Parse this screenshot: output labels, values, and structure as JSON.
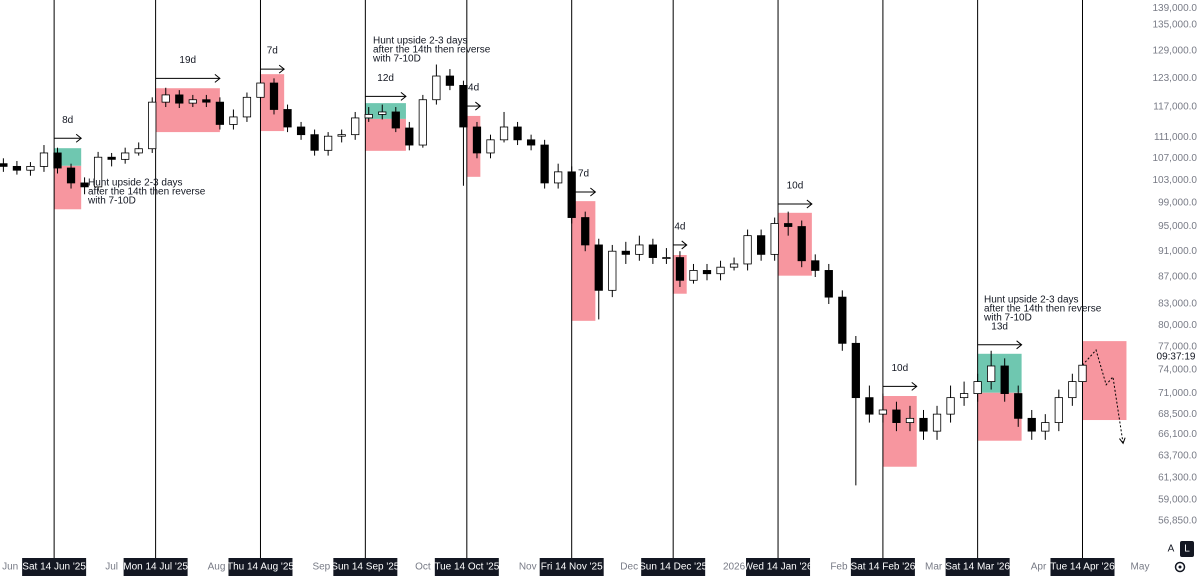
{
  "chart_data": {
    "type": "candlestick",
    "log_scale": true,
    "grid": false,
    "xlim": [
      "2025-05-29",
      "2026-05-01"
    ],
    "ylim": [
      53400,
      141000
    ],
    "yticks": [
      {
        "value": 139000,
        "label": "139,000.0"
      },
      {
        "value": 135000,
        "label": "135,000.0"
      },
      {
        "value": 129000,
        "label": "129,000.0"
      },
      {
        "value": 123000,
        "label": "123,000.0"
      },
      {
        "value": 117000,
        "label": "117,000.0"
      },
      {
        "value": 111000,
        "label": "111,000.0"
      },
      {
        "value": 107000,
        "label": "107,000.0"
      },
      {
        "value": 103000,
        "label": "103,000.0"
      },
      {
        "value": 99000,
        "label": "99,000.0"
      },
      {
        "value": 95000,
        "label": "95,000.0"
      },
      {
        "value": 91000,
        "label": "91,000.0"
      },
      {
        "value": 87000,
        "label": "87,000.0"
      },
      {
        "value": 83000,
        "label": "83,000.0"
      },
      {
        "value": 80000,
        "label": "80,000.0"
      },
      {
        "value": 77000,
        "label": "77,000.0"
      },
      {
        "value": 74000,
        "label": "74,000.0"
      },
      {
        "value": 71000,
        "label": "71,000.0"
      },
      {
        "value": 68500,
        "label": "68,500.0"
      },
      {
        "value": 66100,
        "label": "66,100.0"
      },
      {
        "value": 63700,
        "label": "63,700.0"
      },
      {
        "value": 61300,
        "label": "61,300.0"
      },
      {
        "value": 59000,
        "label": "59,000.0"
      },
      {
        "value": 56850,
        "label": "56,850.0"
      }
    ],
    "xticks": [
      {
        "value": "2025-06-01",
        "label": "Jun"
      },
      {
        "value": "2025-07-01",
        "label": "Jul"
      },
      {
        "value": "2025-08-01",
        "label": "Aug"
      },
      {
        "value": "2025-09-01",
        "label": "Sep"
      },
      {
        "value": "2025-10-01",
        "label": "Oct"
      },
      {
        "value": "2025-11-01",
        "label": "Nov"
      },
      {
        "value": "2025-12-01",
        "label": "Dec"
      },
      {
        "value": "2026-01-01",
        "label": "2026"
      },
      {
        "value": "2026-02-01",
        "label": "Feb"
      },
      {
        "value": "2026-03-01",
        "label": "Mar"
      },
      {
        "value": "2026-04-01",
        "label": "Apr"
      },
      {
        "value": "2026-05-01",
        "label": "May"
      }
    ],
    "vlines": [
      {
        "value": "2025-06-14",
        "label": "Sat 14 Jun '25"
      },
      {
        "value": "2025-07-14",
        "label": "Mon 14 Jul '25"
      },
      {
        "value": "2025-08-14",
        "label": "Thu 14 Aug '25"
      },
      {
        "value": "2025-09-14",
        "label": "Sun 14 Sep '25"
      },
      {
        "value": "2025-10-14",
        "label": "Tue 14 Oct '25"
      },
      {
        "value": "2025-11-14",
        "label": "Fri 14 Nov '25"
      },
      {
        "value": "2025-12-14",
        "label": "Sun 14 Dec '25"
      },
      {
        "value": "2026-01-14",
        "label": "Wed 14 Jan '26"
      },
      {
        "value": "2026-02-14",
        "label": "Sat 14 Feb '26"
      },
      {
        "value": "2026-03-14",
        "label": "Sat 14 Mar '26"
      },
      {
        "value": "2026-04-14",
        "label": "Tue 14 Apr '26"
      }
    ],
    "candles": {
      "x": [
        "2025-05-30",
        "2025-06-03",
        "2025-06-07",
        "2025-06-11",
        "2025-06-15",
        "2025-06-19",
        "2025-06-23",
        "2025-06-27",
        "2025-07-01",
        "2025-07-05",
        "2025-07-09",
        "2025-07-13",
        "2025-07-17",
        "2025-07-21",
        "2025-07-25",
        "2025-07-29",
        "2025-08-02",
        "2025-08-06",
        "2025-08-10",
        "2025-08-14",
        "2025-08-18",
        "2025-08-22",
        "2025-08-26",
        "2025-08-30",
        "2025-09-03",
        "2025-09-07",
        "2025-09-11",
        "2025-09-15",
        "2025-09-19",
        "2025-09-23",
        "2025-09-27",
        "2025-10-01",
        "2025-10-05",
        "2025-10-09",
        "2025-10-13",
        "2025-10-17",
        "2025-10-21",
        "2025-10-25",
        "2025-10-29",
        "2025-11-02",
        "2025-11-06",
        "2025-11-10",
        "2025-11-14",
        "2025-11-18",
        "2025-11-22",
        "2025-11-26",
        "2025-11-30",
        "2025-12-04",
        "2025-12-08",
        "2025-12-12",
        "2025-12-16",
        "2025-12-20",
        "2025-12-24",
        "2025-12-28",
        "2026-01-01",
        "2026-01-05",
        "2026-01-09",
        "2026-01-13",
        "2026-01-17",
        "2026-01-21",
        "2026-01-25",
        "2026-01-29",
        "2026-02-02",
        "2026-02-06",
        "2026-02-10",
        "2026-02-14",
        "2026-02-18",
        "2026-02-22",
        "2026-02-26",
        "2026-03-02",
        "2026-03-06",
        "2026-03-10",
        "2026-03-14",
        "2026-03-18",
        "2026-03-22",
        "2026-03-26",
        "2026-03-30",
        "2026-04-03",
        "2026-04-07",
        "2026-04-11",
        "2026-04-14"
      ],
      "open": [
        106000,
        105500,
        104800,
        105500,
        108000,
        105200,
        102500,
        101800,
        107200,
        106800,
        108000,
        108800,
        118000,
        119500,
        117800,
        118500,
        118000,
        113500,
        115000,
        119000,
        122000,
        116500,
        113000,
        111500,
        108500,
        111200,
        111500,
        114800,
        115500,
        116000,
        112800,
        109500,
        118500,
        123500,
        121500,
        113000,
        108000,
        110500,
        113000,
        110500,
        109500,
        102500,
        104500,
        96500,
        92000,
        85000,
        91000,
        90500,
        92000,
        90000,
        90000,
        86500,
        88000,
        87500,
        88500,
        89000,
        93500,
        90500,
        95500,
        95000,
        89500,
        88000,
        84000,
        77500,
        70500,
        68500,
        69000,
        67500,
        68000,
        66500,
        68500,
        70500,
        71000,
        72500,
        74500,
        71000,
        68000,
        66500,
        67500,
        70500,
        72500
      ],
      "high": [
        107000,
        106500,
        106300,
        109500,
        109000,
        106000,
        103500,
        108200,
        108000,
        109000,
        110000,
        119000,
        121000,
        120500,
        119500,
        119500,
        119000,
        116500,
        120000,
        124500,
        123000,
        117500,
        114000,
        112500,
        112000,
        112500,
        116000,
        117000,
        117500,
        117000,
        114000,
        119500,
        126000,
        125000,
        122500,
        114000,
        111500,
        116000,
        114000,
        111500,
        110500,
        106000,
        105500,
        97500,
        93000,
        92000,
        92500,
        93500,
        93000,
        91500,
        91000,
        89000,
        89000,
        89500,
        90000,
        94500,
        94500,
        96500,
        97500,
        96000,
        90500,
        89000,
        85000,
        78500,
        72000,
        71000,
        70000,
        69500,
        69000,
        69500,
        72000,
        72500,
        73500,
        76500,
        75500,
        72000,
        69000,
        68500,
        71500,
        73500,
        75500
      ],
      "low": [
        104500,
        104000,
        103800,
        104500,
        104200,
        101500,
        100500,
        101000,
        105500,
        106000,
        107500,
        108000,
        117000,
        116800,
        117000,
        117000,
        112500,
        112500,
        114000,
        118000,
        115500,
        112000,
        110500,
        107500,
        107500,
        110000,
        110500,
        114000,
        114500,
        112000,
        108500,
        109000,
        117500,
        120500,
        102000,
        107000,
        107000,
        110000,
        109500,
        108500,
        101500,
        101500,
        95500,
        91000,
        80800,
        84000,
        89000,
        89500,
        89000,
        89000,
        85500,
        86000,
        86500,
        86500,
        88000,
        88000,
        89500,
        89500,
        93500,
        88500,
        87000,
        83000,
        76500,
        60500,
        67500,
        67500,
        66500,
        66500,
        65500,
        65500,
        67500,
        69500,
        70000,
        71500,
        70000,
        67000,
        65500,
        65500,
        66500,
        69500,
        72000
      ],
      "close": [
        105500,
        104800,
        105500,
        108000,
        105200,
        102500,
        101800,
        107200,
        106800,
        108000,
        108800,
        118000,
        119500,
        117800,
        118500,
        118000,
        113500,
        115000,
        119000,
        122000,
        116500,
        113000,
        111500,
        108500,
        111200,
        111500,
        114800,
        115500,
        116000,
        112800,
        109500,
        118500,
        123500,
        121500,
        113000,
        108000,
        110500,
        113000,
        110500,
        109500,
        102500,
        104500,
        96500,
        92000,
        85000,
        91000,
        90500,
        92000,
        90000,
        90000,
        86500,
        88000,
        87500,
        88500,
        89000,
        93500,
        90500,
        95500,
        95000,
        89500,
        88000,
        84000,
        77500,
        70500,
        68500,
        69000,
        67500,
        68000,
        66500,
        68500,
        70500,
        71000,
        72500,
        74500,
        71000,
        68000,
        66500,
        67500,
        70500,
        72500,
        74600
      ],
      "up_color": "#ffffff",
      "down_color": "#000000"
    },
    "boxes": [
      {
        "x0": "2025-06-14",
        "x1": "2025-06-22",
        "y0": 108900,
        "y1": 105600,
        "color": "#6fc7b0"
      },
      {
        "x0": "2025-06-14",
        "x1": "2025-06-22",
        "y0": 105600,
        "y1": 97900,
        "color": "#f7969f"
      },
      {
        "x0": "2025-07-14",
        "x1": "2025-08-02",
        "y0": 120900,
        "y1": 112000,
        "color": "#f7969f"
      },
      {
        "x0": "2025-08-14",
        "x1": "2025-08-21",
        "y0": 123900,
        "y1": 112200,
        "color": "#f7969f"
      },
      {
        "x0": "2025-09-14",
        "x1": "2025-09-26",
        "y0": 117800,
        "y1": 114600,
        "color": "#6fc7b0"
      },
      {
        "x0": "2025-09-14",
        "x1": "2025-09-26",
        "y0": 114600,
        "y1": 108400,
        "color": "#f7969f"
      },
      {
        "x0": "2025-10-14",
        "x1": "2025-10-18",
        "y0": 115200,
        "y1": 103600,
        "color": "#f7969f"
      },
      {
        "x0": "2025-11-14",
        "x1": "2025-11-21",
        "y0": 99300,
        "y1": 80600,
        "color": "#f7969f"
      },
      {
        "x0": "2025-12-14",
        "x1": "2025-12-18",
        "y0": 90400,
        "y1": 84500,
        "color": "#f7969f"
      },
      {
        "x0": "2026-01-14",
        "x1": "2026-01-24",
        "y0": 97300,
        "y1": 87200,
        "color": "#f7969f"
      },
      {
        "x0": "2026-02-14",
        "x1": "2026-02-24",
        "y0": 70700,
        "y1": 62500,
        "color": "#f7969f"
      },
      {
        "x0": "2026-03-14",
        "x1": "2026-03-27",
        "y0": 76100,
        "y1": 71100,
        "color": "#6fc7b0"
      },
      {
        "x0": "2026-03-14",
        "x1": "2026-03-27",
        "y0": 71100,
        "y1": 65400,
        "color": "#f7969f"
      },
      {
        "x0": "2026-04-14",
        "x1": "2026-04-27",
        "y0": 77800,
        "y1": 67800,
        "color": "#f7969f"
      }
    ],
    "arrows": [
      {
        "x0": "2025-06-14",
        "x1": "2025-06-22",
        "y": 110800,
        "label": "8d"
      },
      {
        "x0": "2025-07-14",
        "x1": "2025-08-02",
        "y": 123000,
        "label": "19d"
      },
      {
        "x0": "2025-08-14",
        "x1": "2025-08-21",
        "y": 125000,
        "label": "7d"
      },
      {
        "x0": "2025-09-14",
        "x1": "2025-09-26",
        "y": 119200,
        "label": "12d"
      },
      {
        "x0": "2025-10-14",
        "x1": "2025-10-18",
        "y": 117200,
        "label": "4d"
      },
      {
        "x0": "2025-11-14",
        "x1": "2025-11-21",
        "y": 100900,
        "label": "7d"
      },
      {
        "x0": "2025-12-14",
        "x1": "2025-12-18",
        "y": 92000,
        "label": "4d"
      },
      {
        "x0": "2026-01-14",
        "x1": "2026-01-24",
        "y": 98800,
        "label": "10d"
      },
      {
        "x0": "2026-02-14",
        "x1": "2026-02-24",
        "y": 71900,
        "label": "10d"
      },
      {
        "x0": "2026-03-14",
        "x1": "2026-03-27",
        "y": 77300,
        "label": "13d"
      }
    ],
    "notes": [
      {
        "lines": [
          "Hunt upside 2-3 days",
          "after the 14th then reverse",
          "with 7-10D"
        ]
      },
      {
        "lines": [
          "Hunt upside 2-3 days",
          "after the 14th then reverse",
          "with 7-10D"
        ]
      },
      {
        "lines": [
          "Hunt upside 2-3 days",
          "after the 14th then reverse",
          "with 7-10D"
        ]
      }
    ],
    "projection": {
      "x": [
        "2026-04-14",
        "2026-04-18",
        "2026-04-21",
        "2026-04-23",
        "2026-04-26"
      ],
      "y": [
        74600,
        76600,
        72100,
        73100,
        65100
      ]
    },
    "countdown": "09:37:19",
    "buttons": [
      "A",
      "L"
    ]
  }
}
